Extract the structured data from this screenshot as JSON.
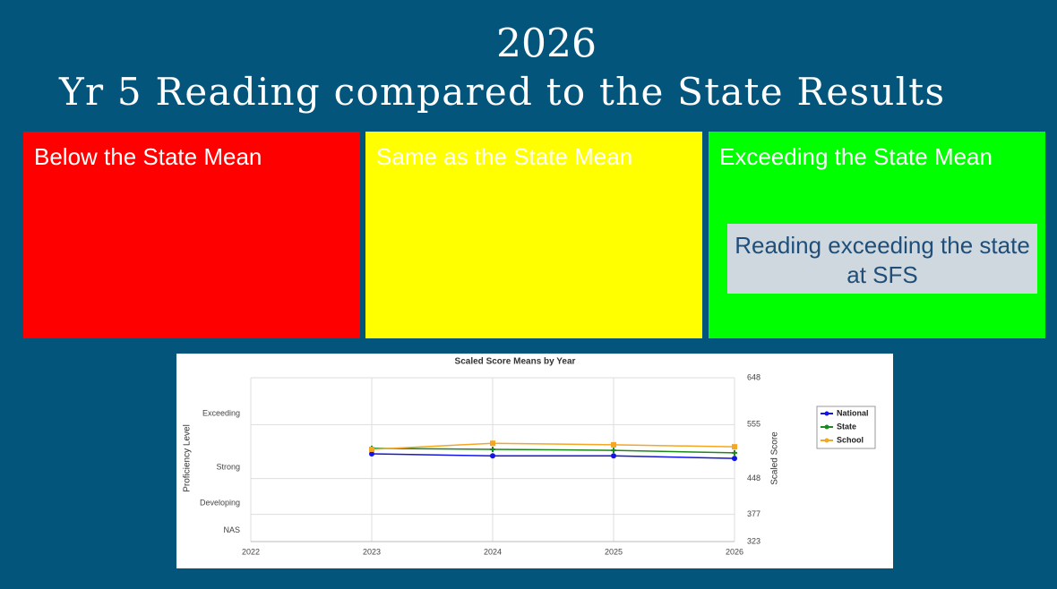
{
  "header": {
    "year": "2026",
    "title": "Yr 5 Reading compared to the State Results"
  },
  "panels": [
    {
      "label": "Below the State Mean"
    },
    {
      "label": "Same as the State Mean"
    },
    {
      "label": "Exceeding the State Mean",
      "note": "Reading exceeding the state at SFS"
    }
  ],
  "chart_data": {
    "type": "line",
    "title": "Scaled Score Means by Year",
    "ylabel": "Proficiency Level",
    "y2label": "Scaled Score",
    "x": [
      2023,
      2024,
      2025,
      2026
    ],
    "xlim": [
      2022,
      2026
    ],
    "xticks": [
      2022,
      2023,
      2024,
      2025,
      2026
    ],
    "ylim": [
      323,
      648
    ],
    "yticks": [
      {
        "value": 577,
        "label": "Exceeding"
      },
      {
        "value": 470,
        "label": "Strong"
      },
      {
        "value": 399,
        "label": "Developing"
      },
      {
        "value": 345,
        "label": "NAS"
      }
    ],
    "y2lim": [
      323,
      648
    ],
    "y2ticks": [
      323,
      377,
      448,
      555,
      648
    ],
    "grid": true,
    "legend": "right",
    "series": [
      {
        "name": "National",
        "color": "#1414e6",
        "values": [
          497,
          493,
          493,
          488
        ]
      },
      {
        "name": "State",
        "color": "#1a8a1a",
        "values": [
          508,
          506,
          504,
          499
        ]
      },
      {
        "name": "School",
        "color": "#f5a623",
        "values": [
          506,
          518,
          515,
          511
        ]
      }
    ]
  }
}
